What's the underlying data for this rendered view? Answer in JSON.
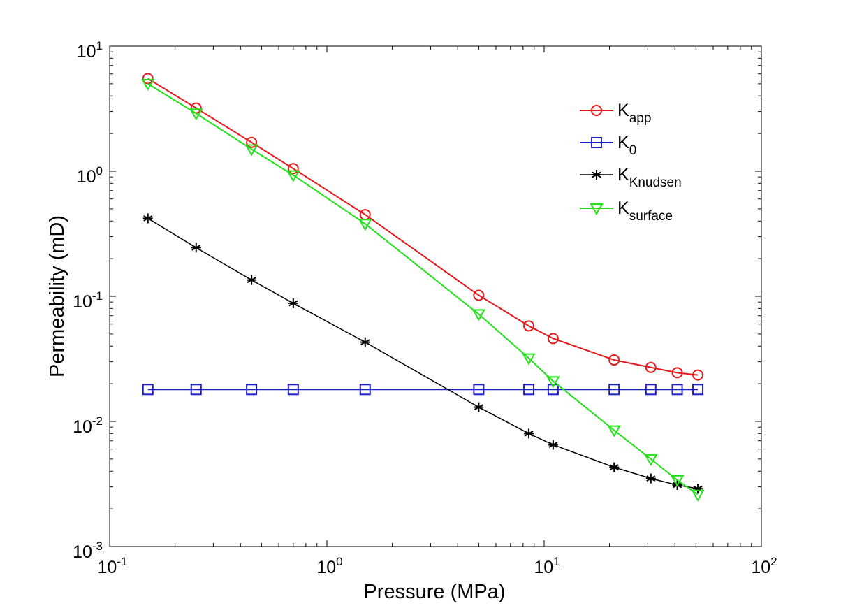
{
  "chart_data": {
    "type": "line",
    "title": "",
    "xlabel": "Pressure (MPa)",
    "ylabel": "Permeability (mD)",
    "xscale": "log",
    "yscale": "log",
    "xlim": [
      0.1,
      100
    ],
    "ylim": [
      0.001,
      10
    ],
    "grid": false,
    "legend_position": "top-right",
    "x_ticks": [
      {
        "value": 0.1,
        "base": "10",
        "exp": "-1"
      },
      {
        "value": 1,
        "base": "10",
        "exp": "0"
      },
      {
        "value": 10,
        "base": "10",
        "exp": "1"
      },
      {
        "value": 100,
        "base": "10",
        "exp": "2"
      }
    ],
    "y_ticks": [
      {
        "value": 0.001,
        "base": "10",
        "exp": "-3"
      },
      {
        "value": 0.01,
        "base": "10",
        "exp": "-2"
      },
      {
        "value": 0.1,
        "base": "10",
        "exp": "-1"
      },
      {
        "value": 1,
        "base": "10",
        "exp": "0"
      },
      {
        "value": 10,
        "base": "10",
        "exp": "1"
      }
    ],
    "x": [
      0.15,
      0.25,
      0.45,
      0.7,
      1.5,
      5,
      8.5,
      11,
      21,
      31,
      41,
      51
    ],
    "series": [
      {
        "name": "K_app",
        "label_main": "K",
        "label_sub": "app",
        "color": "#e31a1c",
        "marker": "circle",
        "values": [
          5.5,
          3.2,
          1.7,
          1.05,
          0.45,
          0.102,
          0.058,
          0.046,
          0.031,
          0.027,
          0.0245,
          0.0235
        ]
      },
      {
        "name": "K_0",
        "label_main": "K",
        "label_sub": "0",
        "color": "#1f1fcc",
        "marker": "square",
        "values": [
          0.018,
          0.018,
          0.018,
          0.018,
          0.018,
          0.018,
          0.018,
          0.018,
          0.018,
          0.018,
          0.018,
          0.018
        ]
      },
      {
        "name": "K_Knudsen",
        "label_main": "K",
        "label_sub": "Knudsen",
        "color": "#000000",
        "marker": "asterisk",
        "values": [
          0.42,
          0.245,
          0.135,
          0.088,
          0.043,
          0.013,
          0.008,
          0.0065,
          0.0043,
          0.0035,
          0.0031,
          0.0029
        ]
      },
      {
        "name": "K_surface",
        "label_main": "K",
        "label_sub": "surface",
        "color": "#22e01a",
        "marker": "triangle-down",
        "values": [
          5.0,
          2.9,
          1.5,
          0.93,
          0.38,
          0.072,
          0.032,
          0.021,
          0.0085,
          0.005,
          0.0034,
          0.0026
        ]
      }
    ]
  }
}
